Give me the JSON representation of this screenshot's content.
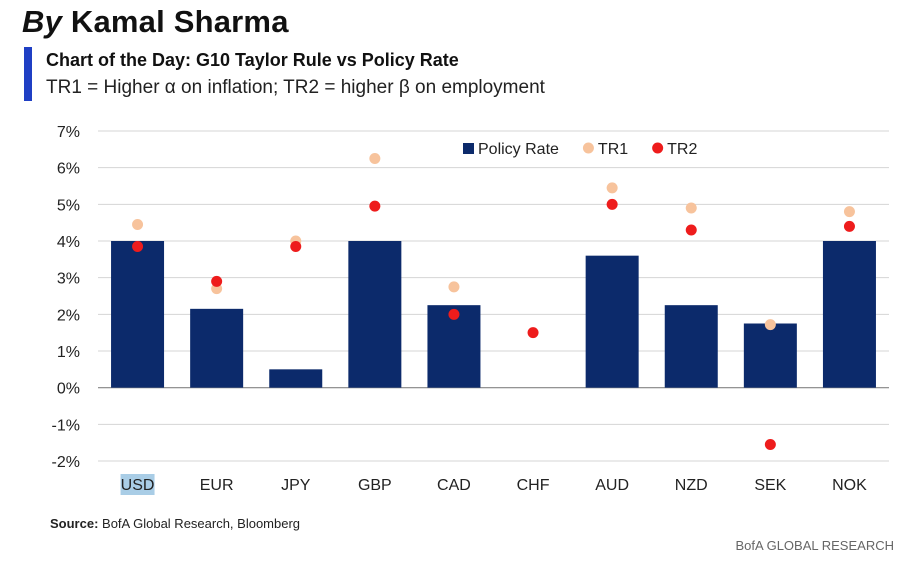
{
  "header": {
    "author_prefix": "By",
    "author_name": "Kamal Sharma",
    "accent_color": "#1f3fc4"
  },
  "chart_data": {
    "type": "bar",
    "title": "Chart of the Day: G10 Taylor Rule vs Policy Rate",
    "subtitle": "TR1 = Higher  α on inflation; TR2 = higher β on employment",
    "categories": [
      "USD",
      "EUR",
      "JPY",
      "GBP",
      "CAD",
      "CHF",
      "AUD",
      "NZD",
      "SEK",
      "NOK"
    ],
    "highlighted_category": "USD",
    "ylim": [
      -2,
      7
    ],
    "yticks": [
      7,
      6,
      5,
      4,
      3,
      2,
      1,
      0,
      -1,
      -2
    ],
    "ytick_labels": [
      "7%",
      "6%",
      "5%",
      "4%",
      "3%",
      "2%",
      "1%",
      "0%",
      "-1%",
      "-2%"
    ],
    "grid": true,
    "legend_position": "top-right",
    "series": [
      {
        "name": "Policy Rate",
        "kind": "bar",
        "color": "#0c2a6b",
        "values": [
          4.0,
          2.15,
          0.5,
          4.0,
          2.25,
          0.0,
          3.6,
          2.25,
          1.75,
          4.0
        ]
      },
      {
        "name": "TR1",
        "kind": "dot",
        "color": "#f7c39c",
        "values": [
          4.45,
          2.7,
          4.0,
          6.25,
          2.75,
          null,
          5.45,
          4.9,
          1.72,
          4.8
        ]
      },
      {
        "name": "TR2",
        "kind": "dot",
        "color": "#ee1c1c",
        "values": [
          3.85,
          2.9,
          3.85,
          4.95,
          2.0,
          1.5,
          5.0,
          4.3,
          -1.55,
          4.4
        ]
      }
    ]
  },
  "footer": {
    "source_label": "Source:",
    "source_text": "BofA Global Research, Bloomberg",
    "watermark": "BofA GLOBAL RESEARCH"
  }
}
